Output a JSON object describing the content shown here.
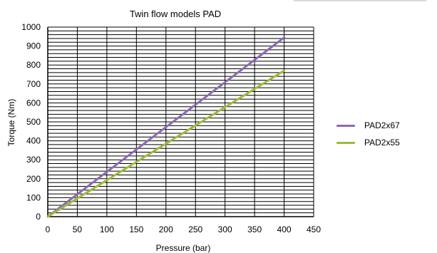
{
  "chart_data": {
    "type": "line",
    "title": "Twin flow models PAD",
    "xlabel": "Pressure (bar)",
    "ylabel": "Torque (Nm)",
    "xlim": [
      0,
      450
    ],
    "ylim": [
      0,
      1000
    ],
    "x_ticks": [
      0,
      50,
      100,
      150,
      200,
      250,
      300,
      350,
      400,
      450
    ],
    "y_ticks": [
      0,
      100,
      200,
      300,
      400,
      500,
      600,
      700,
      800,
      900,
      1000
    ],
    "grid": true,
    "legend_position": "right",
    "series": [
      {
        "name": "PAD2x67",
        "color": "#8c6bb1",
        "x": [
          0,
          400
        ],
        "y": [
          0,
          945
        ]
      },
      {
        "name": "PAD2x55",
        "color": "#9bbb3b",
        "x": [
          0,
          400
        ],
        "y": [
          0,
          770
        ]
      }
    ]
  }
}
